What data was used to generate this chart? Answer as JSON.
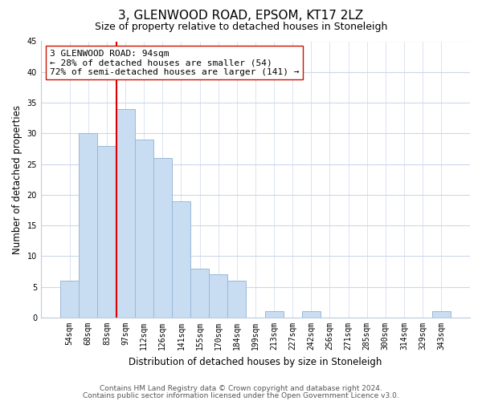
{
  "title": "3, GLENWOOD ROAD, EPSOM, KT17 2LZ",
  "subtitle": "Size of property relative to detached houses in Stoneleigh",
  "xlabel": "Distribution of detached houses by size in Stoneleigh",
  "ylabel": "Number of detached properties",
  "bar_labels": [
    "54sqm",
    "68sqm",
    "83sqm",
    "97sqm",
    "112sqm",
    "126sqm",
    "141sqm",
    "155sqm",
    "170sqm",
    "184sqm",
    "199sqm",
    "213sqm",
    "227sqm",
    "242sqm",
    "256sqm",
    "271sqm",
    "285sqm",
    "300sqm",
    "314sqm",
    "329sqm",
    "343sqm"
  ],
  "bar_values": [
    6,
    30,
    28,
    34,
    29,
    26,
    19,
    8,
    7,
    6,
    0,
    1,
    0,
    1,
    0,
    0,
    0,
    0,
    0,
    0,
    1
  ],
  "bar_color": "#c9ddf2",
  "bar_edge_color": "#9ab8d8",
  "vline_color": "#dd0000",
  "vline_pos": 2.5,
  "ylim": [
    0,
    45
  ],
  "yticks": [
    0,
    5,
    10,
    15,
    20,
    25,
    30,
    35,
    40,
    45
  ],
  "ann_line1": "3 GLENWOOD ROAD: 94sqm",
  "ann_line2": "← 28% of detached houses are smaller (54)",
  "ann_line3": "72% of semi-detached houses are larger (141) →",
  "footnote1": "Contains HM Land Registry data © Crown copyright and database right 2024.",
  "footnote2": "Contains public sector information licensed under the Open Government Licence v3.0.",
  "bg_color": "#ffffff",
  "grid_color": "#cdd8ea",
  "title_fontsize": 11,
  "subtitle_fontsize": 9,
  "axis_label_fontsize": 8.5,
  "tick_fontsize": 7,
  "ann_fontsize": 8,
  "footnote_fontsize": 6.5
}
